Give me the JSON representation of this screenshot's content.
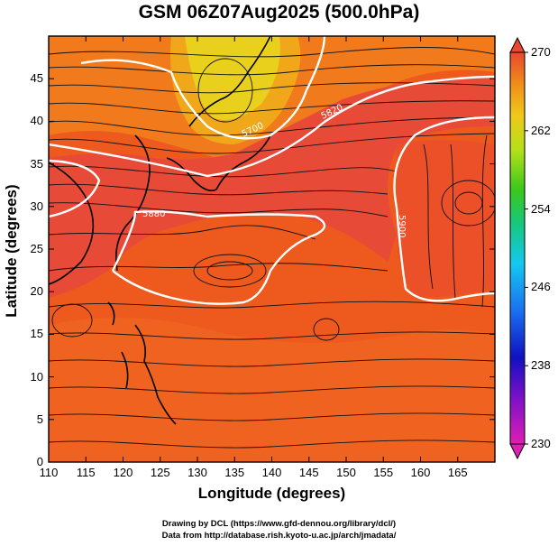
{
  "title": "GSM 06Z07Aug2025 (500.0hPa)",
  "xlabel": "Longitude (degrees)",
  "ylabel": "Latitude  (degrees)",
  "x_ticks": [
    "110",
    "115",
    "120",
    "125",
    "130",
    "135",
    "140",
    "145",
    "150",
    "155",
    "160",
    "165"
  ],
  "y_ticks": [
    "0",
    "5",
    "10",
    "15",
    "20",
    "25",
    "30",
    "35",
    "40",
    "45"
  ],
  "colorbar": {
    "ticks": [
      "230",
      "238",
      "246",
      "254",
      "262",
      "270"
    ],
    "min": 230,
    "max": 270
  },
  "contours": [
    {
      "label": "5700",
      "color": "#ffffff"
    },
    {
      "label": "5820",
      "color": "#ffffff"
    },
    {
      "label": "5880",
      "color": "#ffffff"
    },
    {
      "label": "5900",
      "color": "#ffffff"
    }
  ],
  "credits": {
    "line1": "Drawing by DCL (https://www.gfd-dennou.org/library/dcl/)",
    "line2": "Data from http://database.rish.kyoto-u.ac.jp/arch/jmadata/"
  },
  "colors": {
    "field_main": "#ee5a1e",
    "field_cool": "#f08a1a",
    "field_warm": "#e84836",
    "field_cold_core": "#d8e61e"
  }
}
